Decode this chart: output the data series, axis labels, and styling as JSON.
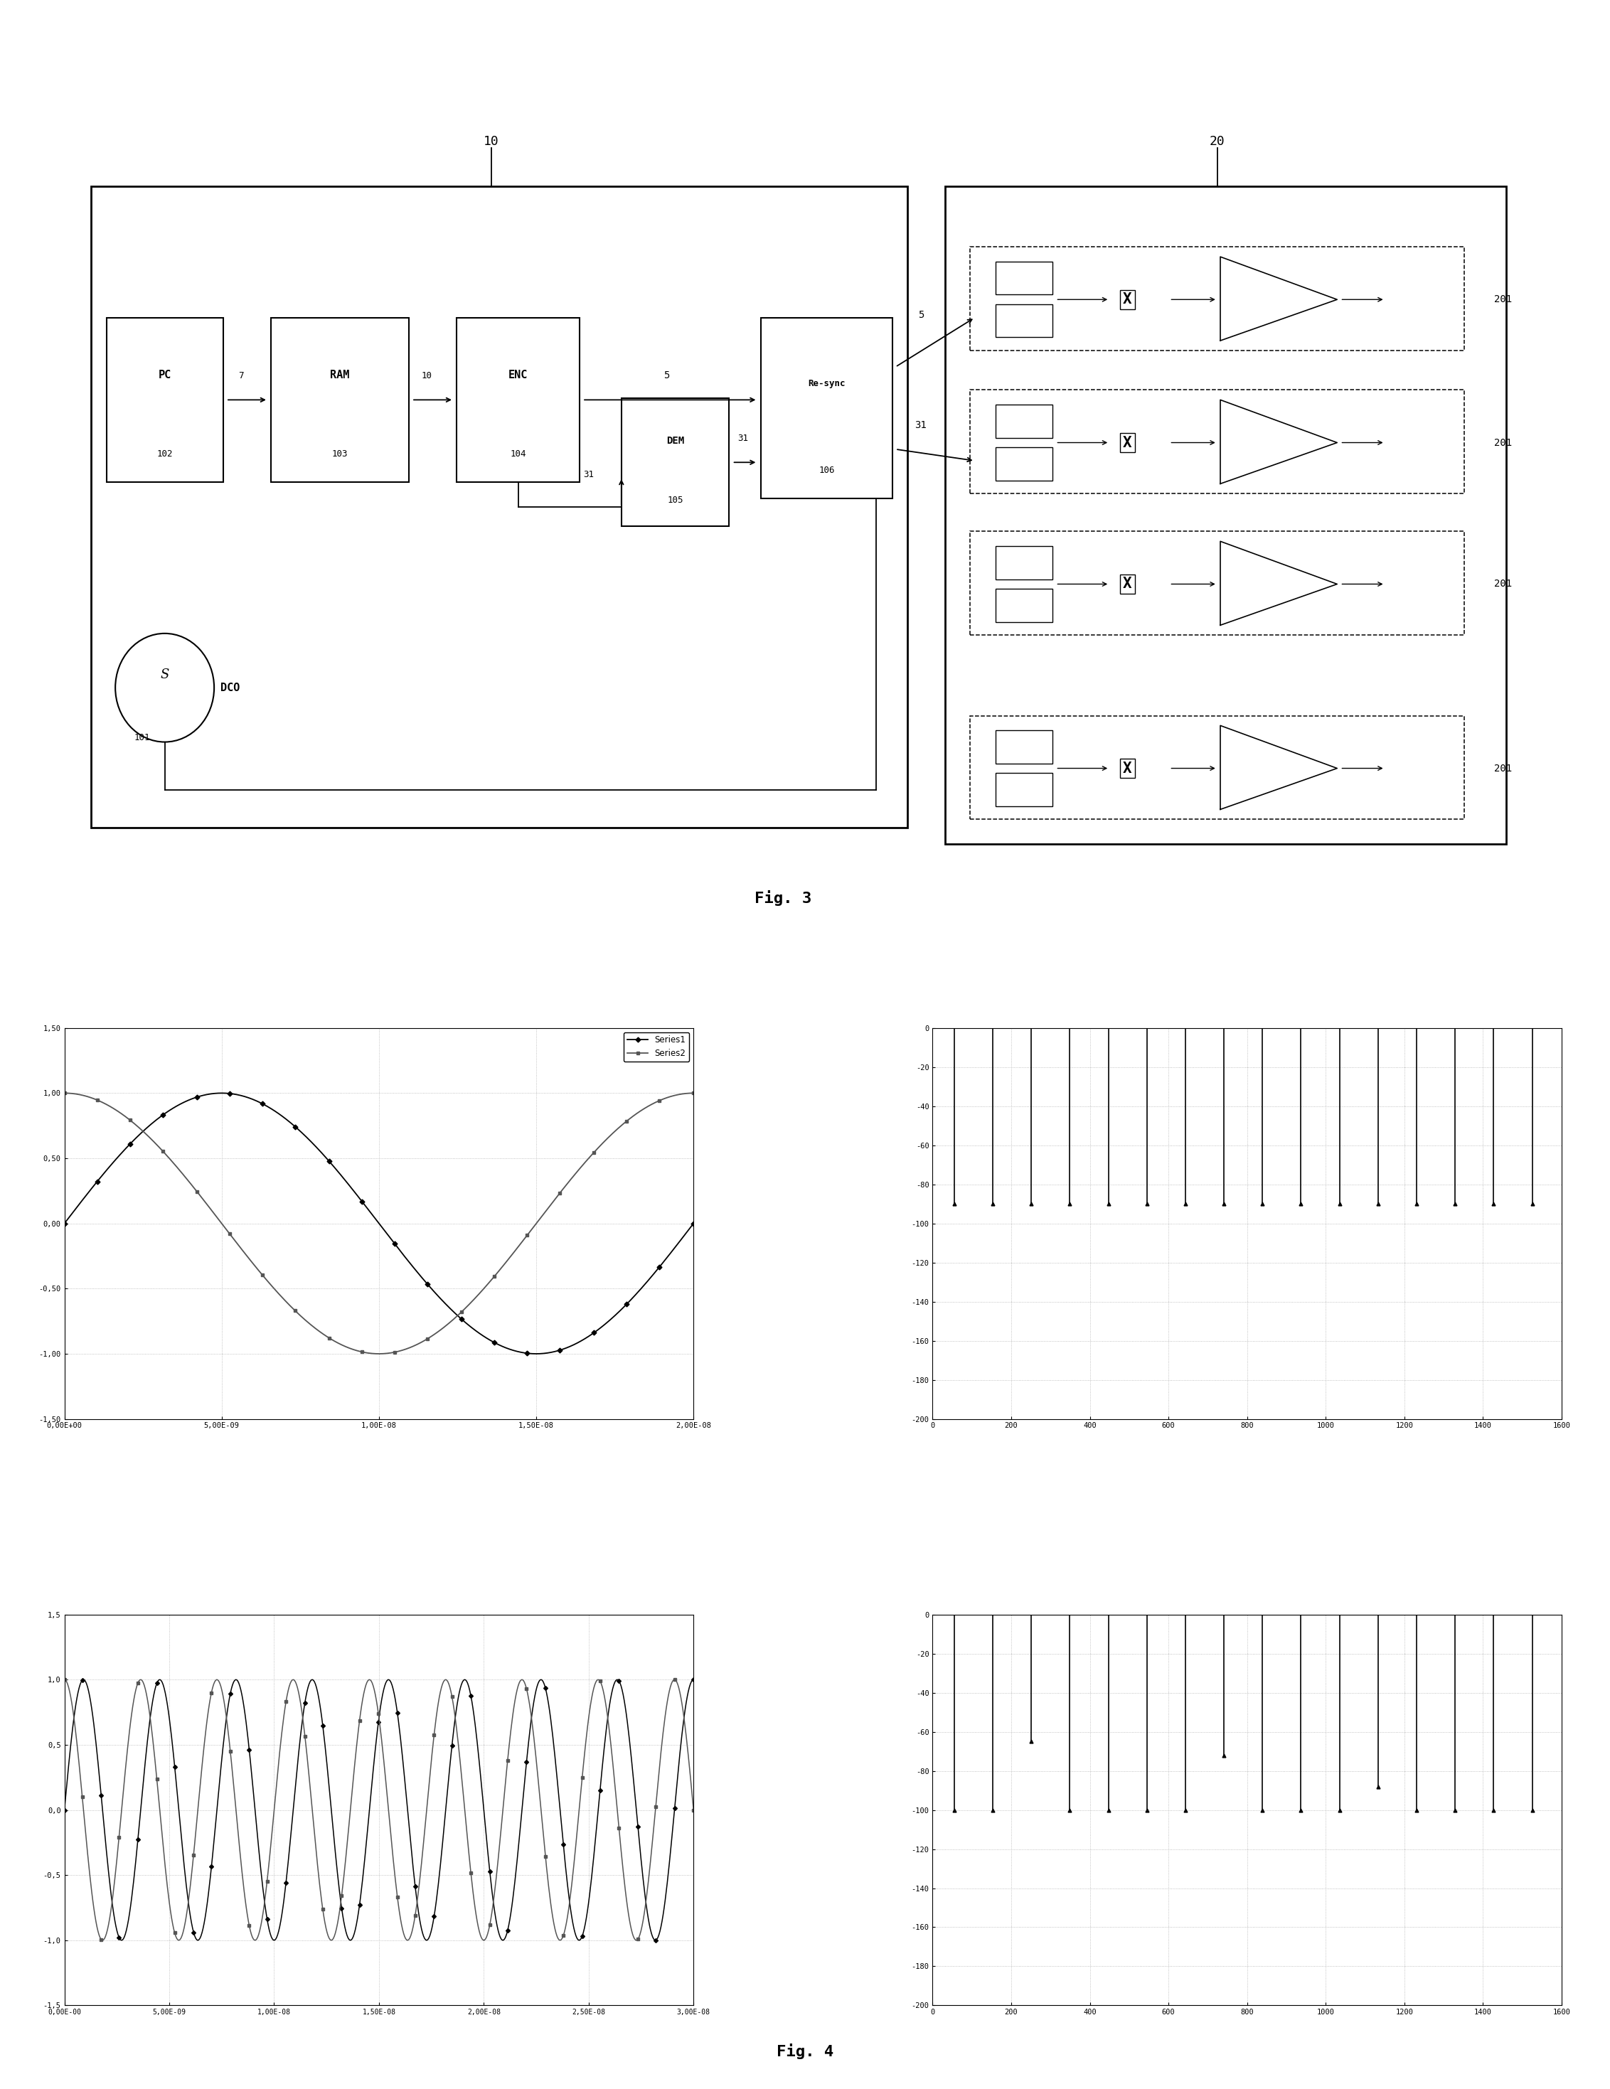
{
  "fig3_title": "Fig. 3",
  "fig4_title": "Fig. 4",
  "series1_name": "Series1",
  "series2_name": "Series2",
  "plot1_ylim": [
    -1.5,
    1.5
  ],
  "plot1_yticks": [
    -1.5,
    -1.0,
    -0.5,
    0.0,
    0.5,
    1.0,
    1.5
  ],
  "plot1_xlim": [
    0,
    2e-08
  ],
  "plot1_xticks": [
    0,
    5e-09,
    1e-08,
    1.5e-08,
    2e-08
  ],
  "plot1_xtick_labels": [
    "0,00E+00",
    "5,00E-09",
    "1,00E-08",
    "1,50E-08",
    "2,00E-08"
  ],
  "plot1_ytick_labels": [
    "-1,50",
    "-1,00",
    "-0,50",
    "0,00",
    "0,50",
    "1,00",
    "1,50"
  ],
  "plot2_ylim": [
    -200,
    0
  ],
  "plot2_yticks": [
    0,
    -20,
    -40,
    -60,
    -80,
    -100,
    -120,
    -140,
    -160,
    -180,
    -200
  ],
  "plot2_xlim": [
    0,
    1600
  ],
  "plot2_xticks": [
    0,
    200,
    400,
    600,
    800,
    1000,
    1200,
    1400,
    1600
  ],
  "plot3_ylim": [
    -1.5,
    1.5
  ],
  "plot3_yticks": [
    -1.5,
    -1.0,
    -0.5,
    0.0,
    0.5,
    1.0,
    1.5
  ],
  "plot3_xlim": [
    0,
    3e-08
  ],
  "plot3_xticks": [
    0,
    5e-09,
    1e-08,
    1.5e-08,
    2e-08,
    2.5e-08,
    3e-08
  ],
  "plot3_xtick_labels": [
    "0,00E-00",
    "5,00E-09",
    "1,00E-08",
    "1,50E-08",
    "2,00E-08",
    "2,50E-08",
    "3,00E-08"
  ],
  "plot3_ytick_labels": [
    "-1,5",
    "-1,0",
    "-0,5",
    "0,0",
    "0,5",
    "1,0",
    "1,5"
  ],
  "plot4_ylim": [
    -200,
    0
  ],
  "plot4_yticks": [
    0,
    -20,
    -40,
    -60,
    -80,
    -100,
    -120,
    -140,
    -160,
    -180,
    -200
  ],
  "plot4_xlim": [
    0,
    1600
  ],
  "plot4_xticks": [
    0,
    200,
    400,
    600,
    800,
    1000,
    1200,
    1400,
    1600
  ],
  "bar_color": "#000000",
  "line1_color": "#000000",
  "line2_color": "#555555",
  "grid_color": "#b0b0b0",
  "background": "#ffffff"
}
